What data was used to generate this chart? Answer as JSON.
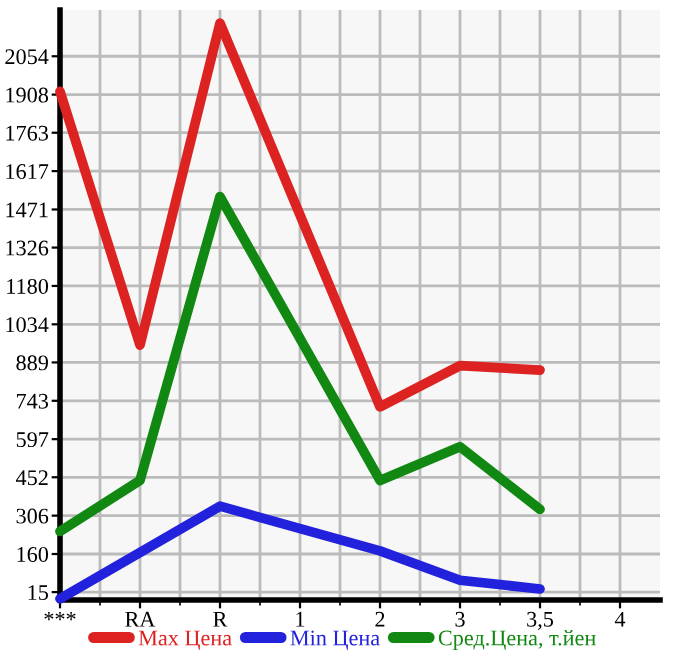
{
  "chart_data": {
    "type": "line",
    "categories": [
      "***",
      "RA",
      "R",
      "1",
      "2",
      "3",
      "3,5",
      "4"
    ],
    "series": [
      {
        "name": "Max Цена",
        "color": "#dd2222",
        "values": [
          1920,
          955,
          2180,
          null,
          720,
          877,
          860,
          null
        ]
      },
      {
        "name": "Min Цена",
        "color": "#2222dd",
        "values": [
          -10,
          null,
          342,
          null,
          172,
          60,
          27,
          null
        ]
      },
      {
        "name": "Сред.Цена, т.йен",
        "color": "#118811",
        "values": [
          246,
          440,
          1520,
          null,
          440,
          568,
          330,
          null
        ]
      }
    ],
    "ylim": [
      -15,
      2230
    ],
    "yticks": [
      15,
      160,
      306,
      452,
      597,
      743,
      889,
      1034,
      1180,
      1326,
      1471,
      1617,
      1763,
      1908,
      2054
    ],
    "grid": true,
    "legend": "bottom",
    "marker": "none",
    "line_style": "solid"
  }
}
